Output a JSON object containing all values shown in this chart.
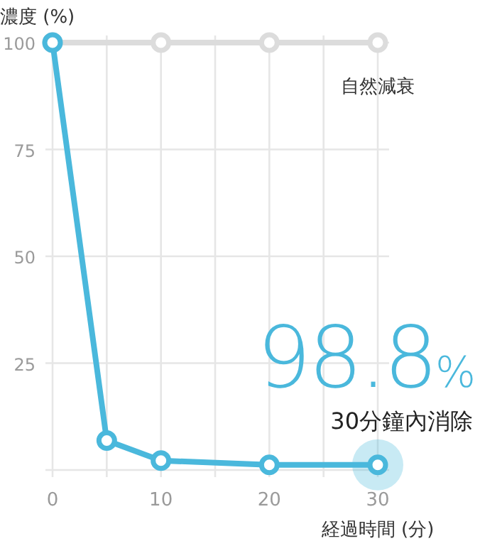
{
  "chart_data": {
    "type": "line",
    "xlabel": "経過時間 (分)",
    "ylabel": "濃度 (%)",
    "xlim": [
      0,
      30
    ],
    "ylim": [
      0,
      100
    ],
    "xticks": [
      0,
      {
        "value": 5,
        "label": null
      },
      10,
      {
        "value": 15,
        "label": null
      },
      20,
      {
        "value": 25,
        "label": null
      },
      30
    ],
    "yticks": [
      {
        "value": 0,
        "label": null
      },
      25,
      50,
      75,
      100
    ],
    "grid": true,
    "marker": "circle",
    "line_style": "solid",
    "series": [
      {
        "name": "自然減衰",
        "color": "#dcdcdc",
        "x": [
          0,
          10,
          20,
          30
        ],
        "values": [
          100,
          100,
          100,
          100
        ]
      },
      {
        "color": "#4ab8dc",
        "x": [
          0,
          5,
          10,
          20,
          30
        ],
        "values": [
          100,
          6.9,
          2.2,
          1.2,
          1.2
        ]
      }
    ],
    "annotations": [
      {
        "text": "98.8%",
        "x": 30,
        "y": 1.2
      },
      "30分鐘內消除"
    ]
  }
}
